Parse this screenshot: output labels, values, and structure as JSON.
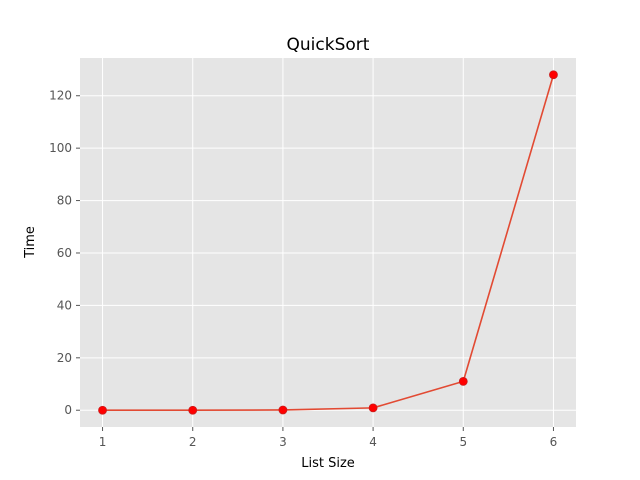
{
  "chart_data": {
    "type": "line",
    "title": "QuickSort",
    "xlabel": "List Size",
    "ylabel": "Time",
    "x": [
      1,
      2,
      3,
      4,
      5,
      6
    ],
    "x_ticks": [
      "1",
      "2",
      "3",
      "4",
      "5",
      "6"
    ],
    "y_ticks": [
      "0",
      "20",
      "40",
      "60",
      "80",
      "100",
      "120"
    ],
    "xlim": [
      0.75,
      6.25
    ],
    "ylim": [
      -6.4,
      134.4
    ],
    "series": [
      {
        "values": [
          0.0,
          0.0,
          0.1,
          0.9,
          11.0,
          128.0
        ]
      }
    ],
    "grid": true,
    "style": {
      "plot_background": "#e5e5e5",
      "grid_color": "#ffffff",
      "line_color": "#e24a33",
      "marker_color": "#ff0000",
      "marker": "circle"
    }
  }
}
